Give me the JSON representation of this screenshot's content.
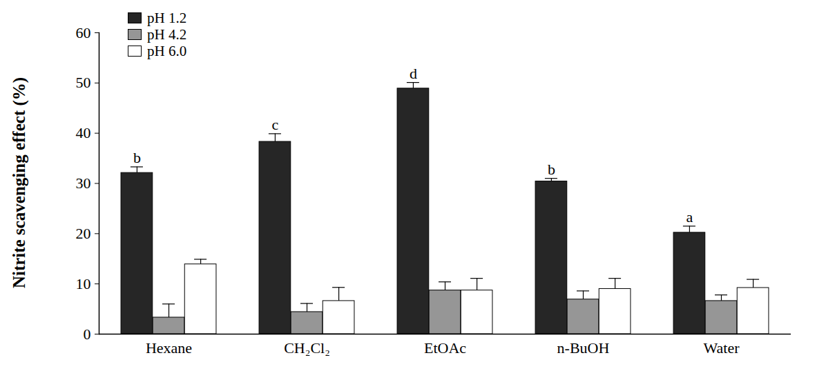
{
  "chart_data": {
    "type": "bar",
    "y_label": "Nitrite scavenging effect (%)",
    "categories": [
      "Hexane",
      "CH₂Cl₂",
      "EtOAc",
      "n-BuOH",
      "Water"
    ],
    "series": [
      {
        "name": "pH 1.2",
        "color": "#262626",
        "values": [
          32.1,
          38.3,
          48.9,
          30.4,
          20.2
        ],
        "errors": [
          1.2,
          1.6,
          1.2,
          0.6,
          1.3
        ]
      },
      {
        "name": "pH 4.2",
        "color": "#969696",
        "values": [
          3.3,
          4.4,
          8.7,
          6.9,
          6.6
        ],
        "errors": [
          2.7,
          1.7,
          1.7,
          1.7,
          1.2
        ]
      },
      {
        "name": "pH 6.0",
        "color": "#ffffff",
        "values": [
          13.9,
          6.6,
          8.7,
          9.0,
          9.2
        ],
        "errors": [
          1.0,
          2.7,
          2.4,
          2.1,
          1.7
        ]
      }
    ],
    "annotations": [
      {
        "category": "Hexane",
        "series": "pH 1.2",
        "text": "b"
      },
      {
        "category": "CH₂Cl₂",
        "series": "pH 1.2",
        "text": "c"
      },
      {
        "category": "EtOAc",
        "series": "pH 1.2",
        "text": "d"
      },
      {
        "category": "n-BuOH",
        "series": "pH 1.2",
        "text": "b"
      },
      {
        "category": "Water",
        "series": "pH 1.2",
        "text": "a"
      }
    ],
    "ylim": [
      0,
      60
    ],
    "yticks": [
      0,
      10,
      20,
      30,
      40,
      50,
      60
    ],
    "legend": "top-left",
    "grid": false
  }
}
